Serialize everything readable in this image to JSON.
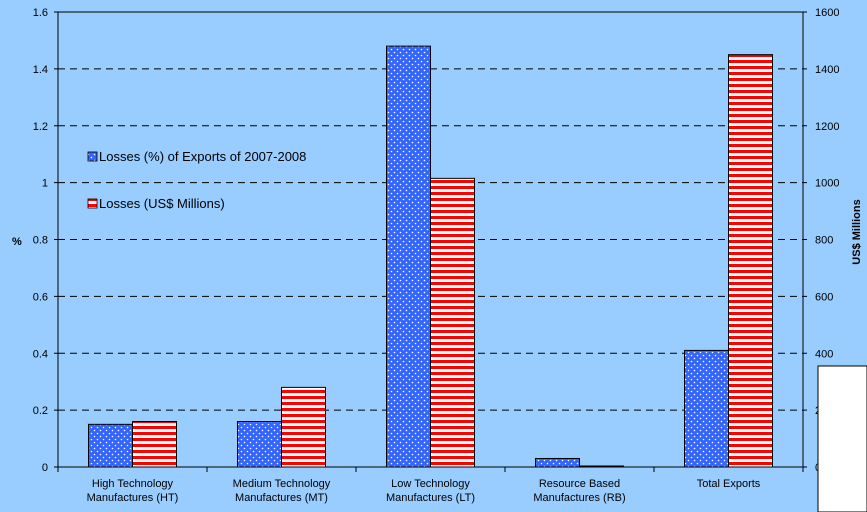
{
  "chart_data": {
    "type": "bar",
    "categories": [
      [
        "High Technology",
        "Manufactures (HT)"
      ],
      [
        "Medium Technology",
        "Manufactures (MT)"
      ],
      [
        "Low Technology",
        "Manufactures (LT)"
      ],
      [
        "Resource Based",
        "Manufactures (RB)"
      ],
      [
        "Total Exports"
      ]
    ],
    "series": [
      {
        "name": "Losses (%) of Exports of 2007-2008",
        "axis": "left",
        "values": [
          0.15,
          0.16,
          1.48,
          0.03,
          0.41
        ],
        "color": "#3366ff",
        "pattern": "dots"
      },
      {
        "name": "Losses (US$ Millions)",
        "axis": "right",
        "values": [
          160,
          280,
          1015,
          3,
          1450
        ],
        "color": "#ff0000",
        "pattern": "horizontal-stripes"
      }
    ],
    "ylabel_left": "%",
    "ylabel_right": "US$ Millions",
    "ylim_left": [
      0,
      1.6
    ],
    "ylim_right": [
      0,
      1600
    ],
    "yticks_left": [
      "0",
      "0.2",
      "0.4",
      "0.6",
      "0.8",
      "1",
      "1.2",
      "1.4",
      "1.6"
    ],
    "yticks_right": [
      "0",
      "200",
      "400",
      "600",
      "800",
      "1000",
      "1200",
      "1400",
      "1600"
    ],
    "grid": true,
    "legend_position": "left, inside plot"
  }
}
